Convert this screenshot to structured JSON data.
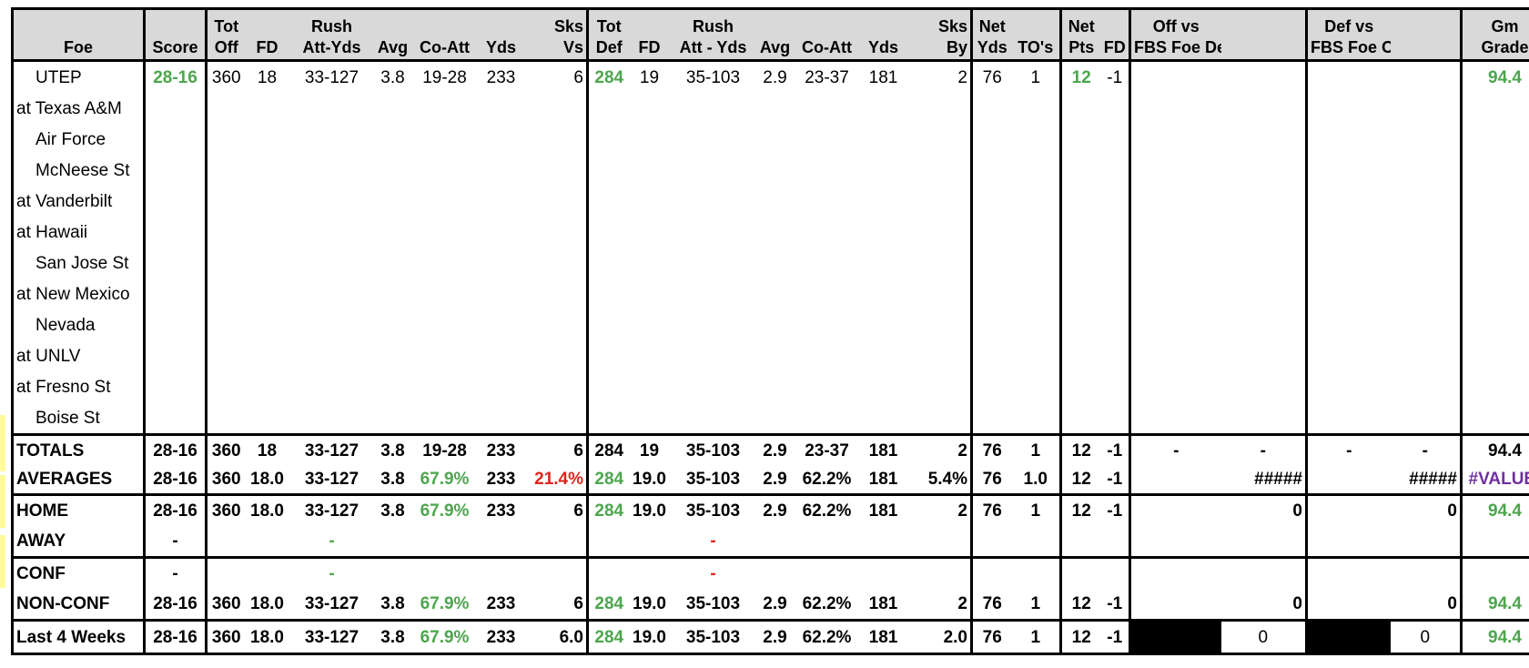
{
  "headers": {
    "row1": [
      "",
      "",
      "Tot",
      "",
      "Rush",
      "",
      "",
      "",
      "Sks",
      "Tot",
      "",
      "Rush",
      "",
      "",
      "",
      "Sks",
      "Net",
      "",
      "Net",
      "",
      "Off vs",
      "",
      "Def vs",
      "",
      "Gm"
    ],
    "row2": [
      "Foe",
      "Score",
      "Off",
      "FD",
      "Att-Yds",
      "Avg",
      "Co-Att",
      "Yds",
      "Vs",
      "Def",
      "FD",
      "Att - Yds",
      "Avg",
      "Co-Att",
      "Yds",
      "By",
      "Yds",
      "TO's",
      "Pts",
      "FD",
      "FBS Foe Def",
      "",
      "FBS Foe Off",
      "",
      "Grade"
    ]
  },
  "games": [
    {
      "foe": "UTEP",
      "at": false,
      "score": "28-16",
      "tot_off": "360",
      "fd": "18",
      "rush": "33-127",
      "avg": "3.8",
      "co_att": "19-28",
      "yds": "233",
      "sks_vs": "6",
      "tot_def": "284",
      "dfd": "19",
      "drush": "35-103",
      "davg": "2.9",
      "dco_att": "23-37",
      "dyds": "181",
      "sks_by": "2",
      "net_yds": "76",
      "tos": "1",
      "net_pts": "12",
      "net_fd": "-1",
      "grade": "94.4"
    },
    {
      "foe": "at Texas A&M",
      "at": true
    },
    {
      "foe": "Air Force",
      "at": false
    },
    {
      "foe": "McNeese St",
      "at": false
    },
    {
      "foe": "at Vanderbilt",
      "at": true
    },
    {
      "foe": "at Hawaii",
      "at": true
    },
    {
      "foe": "San Jose St",
      "at": false
    },
    {
      "foe": "at New Mexico",
      "at": true
    },
    {
      "foe": "Nevada",
      "at": false
    },
    {
      "foe": "at UNLV",
      "at": true
    },
    {
      "foe": "at Fresno St",
      "at": true
    },
    {
      "foe": "Boise St",
      "at": false
    }
  ],
  "totals": [
    "TOTALS",
    "28-16",
    "360",
    "18",
    "33-127",
    "3.8",
    "19-28",
    "233",
    "6",
    "284",
    "19",
    "35-103",
    "2.9",
    "23-37",
    "181",
    "2",
    "76",
    "1",
    "12",
    "-1",
    "-",
    "-",
    "-",
    "-",
    "94.4"
  ],
  "averages": [
    "AVERAGES",
    "28-16",
    "360",
    "18.0",
    "33-127",
    "3.8",
    "67.9%",
    "233",
    "21.4%",
    "284",
    "19.0",
    "35-103",
    "2.9",
    "62.2%",
    "181",
    "5.4%",
    "76",
    "1.0",
    "12",
    "-1",
    "",
    "#####",
    "",
    "#####",
    "#VALUE!"
  ],
  "home": [
    "HOME",
    "28-16",
    "360",
    "18.0",
    "33-127",
    "3.8",
    "67.9%",
    "233",
    "6",
    "284",
    "19.0",
    "35-103",
    "2.9",
    "62.2%",
    "181",
    "2",
    "76",
    "1",
    "12",
    "-1",
    "",
    "0",
    "",
    "0",
    "94.4"
  ],
  "away": [
    "AWAY",
    "-",
    "",
    "",
    "-",
    "",
    "",
    "",
    "",
    "",
    "",
    "-",
    "",
    "",
    "",
    "",
    "",
    "",
    "",
    "",
    "",
    "",
    "",
    "",
    ""
  ],
  "conf": [
    "CONF",
    "-",
    "",
    "",
    "-",
    "",
    "",
    "",
    "",
    "",
    "",
    "-",
    "",
    "",
    "",
    "",
    "",
    "",
    "",
    "",
    "",
    "",
    "",
    "",
    ""
  ],
  "nonconf": [
    "NON-CONF",
    "28-16",
    "360",
    "18.0",
    "33-127",
    "3.8",
    "67.9%",
    "233",
    "6",
    "284",
    "19.0",
    "35-103",
    "2.9",
    "62.2%",
    "181",
    "2",
    "76",
    "1",
    "12",
    "-1",
    "",
    "0",
    "",
    "0",
    "94.4"
  ],
  "last4": [
    "Last 4 Weeks",
    "28-16",
    "360",
    "18.0",
    "33-127",
    "3.8",
    "67.9%",
    "233",
    "6.0",
    "284",
    "19.0",
    "35-103",
    "2.9",
    "62.2%",
    "181",
    "2.0",
    "76",
    "1",
    "12",
    "-1",
    "",
    "0",
    "",
    "0",
    "94.4"
  ],
  "colors": {
    "green": "#4ca64c",
    "red": "#e0241c",
    "purple": "#7030a0",
    "header_bg": "#d9d9d9"
  }
}
